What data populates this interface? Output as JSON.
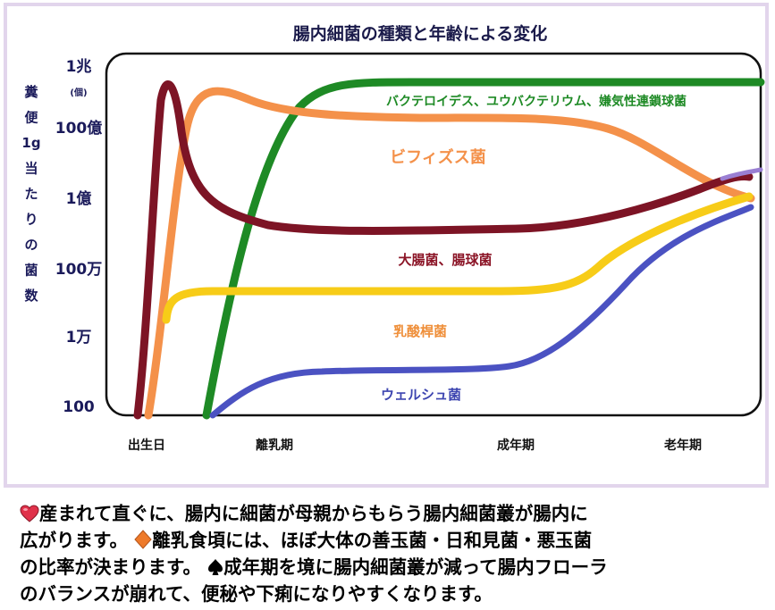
{
  "chart_data": {
    "type": "line",
    "title": "腸内細菌の種類と年齢による変化",
    "ylabel": "糞便1g当たりの菌数",
    "y_ticks": [
      "1兆",
      "100億",
      "1億",
      "100万",
      "1万",
      "100"
    ],
    "y_unit_note": "(個)",
    "x_ticks": [
      "出生日",
      "離乳期",
      "成年期",
      "老年期"
    ],
    "series": [
      {
        "name": "バクテロイデス、ユウバクテリウム、嫌気性連鎖球菌",
        "color": "#1e8a25",
        "label_color": "#1e8a25"
      },
      {
        "name": "ビフィズス菌",
        "color": "#f4914a",
        "label_color": "#f4914a"
      },
      {
        "name": "大腸菌、腸球菌",
        "color": "#7d1425",
        "label_color": "#8b1426"
      },
      {
        "name": "乳酸桿菌",
        "color": "#f7cc18",
        "label_color": "#ef8f3a"
      },
      {
        "name": "ウェルシュ菌",
        "color": "#4b52c2",
        "label_color": "#3d45b0"
      },
      {
        "name": "",
        "color": "#9a7fd3"
      }
    ]
  },
  "caption": {
    "line1": "産まれて直ぐに、腸内に細菌が母親からもらう腸内細菌叢が腸内に",
    "line2a": "広がります。",
    "line2b": "離乳食頃には、ほぼ大体の善玉菌・日和見菌・悪玉菌",
    "line3a": "の比率が決まります。",
    "line3b": "成年期を境に腸内細菌叢が減って腸内フローラ",
    "line4": "のバランスが崩れて、便秘や下痢になりやすくなります。"
  },
  "colors": {
    "heart": "#e0314a",
    "diamond": "#ee7a2a",
    "spade": "#000000",
    "frame": "#e2d5ec"
  },
  "icons": {
    "heart": "heart-icon",
    "diamond": "diamond-icon",
    "spade": "spade-icon"
  }
}
